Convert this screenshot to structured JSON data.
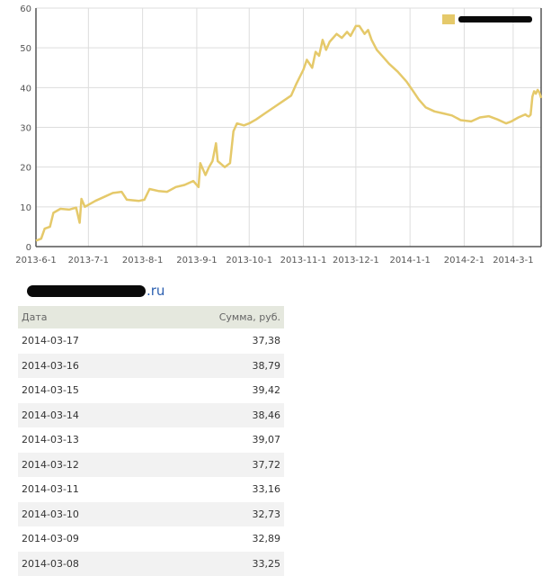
{
  "chart_data": {
    "type": "line",
    "legend": {
      "position": "top-right",
      "label_redacted": true
    },
    "series": [
      {
        "color": "#e5c96a",
        "points": [
          [
            "2013-06-01",
            1.5
          ],
          [
            "2013-06-04",
            2.0
          ],
          [
            "2013-06-06",
            4.5
          ],
          [
            "2013-06-09",
            5.0
          ],
          [
            "2013-06-11",
            8.5
          ],
          [
            "2013-06-15",
            9.5
          ],
          [
            "2013-06-20",
            9.3
          ],
          [
            "2013-06-24",
            9.8
          ],
          [
            "2013-06-26",
            6.0
          ],
          [
            "2013-06-27",
            12.0
          ],
          [
            "2013-06-29",
            10.0
          ],
          [
            "2013-07-05",
            11.5
          ],
          [
            "2013-07-10",
            12.5
          ],
          [
            "2013-07-15",
            13.5
          ],
          [
            "2013-07-20",
            13.8
          ],
          [
            "2013-07-23",
            11.8
          ],
          [
            "2013-07-30",
            11.5
          ],
          [
            "2013-08-02",
            11.8
          ],
          [
            "2013-08-05",
            14.5
          ],
          [
            "2013-08-10",
            14.0
          ],
          [
            "2013-08-15",
            13.8
          ],
          [
            "2013-08-20",
            15.0
          ],
          [
            "2013-08-25",
            15.5
          ],
          [
            "2013-08-30",
            16.5
          ],
          [
            "2013-09-02",
            15.0
          ],
          [
            "2013-09-03",
            21.0
          ],
          [
            "2013-09-06",
            18.0
          ],
          [
            "2013-09-08",
            20.0
          ],
          [
            "2013-09-10",
            21.5
          ],
          [
            "2013-09-12",
            26.0
          ],
          [
            "2013-09-13",
            21.5
          ],
          [
            "2013-09-17",
            20.0
          ],
          [
            "2013-09-20",
            21.0
          ],
          [
            "2013-09-22",
            29.0
          ],
          [
            "2013-09-24",
            31.0
          ],
          [
            "2013-09-28",
            30.5
          ],
          [
            "2013-10-01",
            31.0
          ],
          [
            "2013-10-05",
            32.0
          ],
          [
            "2013-10-10",
            33.5
          ],
          [
            "2013-10-15",
            35.0
          ],
          [
            "2013-10-20",
            36.5
          ],
          [
            "2013-10-25",
            38.0
          ],
          [
            "2013-10-28",
            41.0
          ],
          [
            "2013-11-01",
            44.5
          ],
          [
            "2013-11-03",
            47.0
          ],
          [
            "2013-11-06",
            45.0
          ],
          [
            "2013-11-08",
            49.0
          ],
          [
            "2013-11-10",
            48.0
          ],
          [
            "2013-11-12",
            52.0
          ],
          [
            "2013-11-14",
            49.5
          ],
          [
            "2013-11-16",
            51.5
          ],
          [
            "2013-11-20",
            53.5
          ],
          [
            "2013-11-23",
            52.5
          ],
          [
            "2013-11-26",
            54.0
          ],
          [
            "2013-11-28",
            53.0
          ],
          [
            "2013-12-01",
            55.5
          ],
          [
            "2013-12-03",
            55.5
          ],
          [
            "2013-12-06",
            53.5
          ],
          [
            "2013-12-08",
            54.5
          ],
          [
            "2013-12-10",
            52.0
          ],
          [
            "2013-12-13",
            49.5
          ],
          [
            "2013-12-17",
            47.5
          ],
          [
            "2013-12-20",
            46.0
          ],
          [
            "2013-12-25",
            44.0
          ],
          [
            "2013-12-30",
            41.5
          ],
          [
            "2014-01-03",
            39.0
          ],
          [
            "2014-01-06",
            37.0
          ],
          [
            "2014-01-10",
            35.0
          ],
          [
            "2014-01-15",
            34.0
          ],
          [
            "2014-01-20",
            33.5
          ],
          [
            "2014-01-25",
            33.0
          ],
          [
            "2014-01-30",
            31.8
          ],
          [
            "2014-02-05",
            31.5
          ],
          [
            "2014-02-10",
            32.5
          ],
          [
            "2014-02-15",
            32.8
          ],
          [
            "2014-02-20",
            32.0
          ],
          [
            "2014-02-25",
            31.0
          ],
          [
            "2014-02-28",
            31.5
          ],
          [
            "2014-03-04",
            32.5
          ],
          [
            "2014-03-08",
            33.25
          ],
          [
            "2014-03-09",
            32.89
          ],
          [
            "2014-03-10",
            32.73
          ],
          [
            "2014-03-11",
            33.16
          ],
          [
            "2014-03-12",
            37.72
          ],
          [
            "2014-03-13",
            39.07
          ],
          [
            "2014-03-14",
            38.46
          ],
          [
            "2014-03-15",
            39.42
          ],
          [
            "2014-03-16",
            38.79
          ],
          [
            "2014-03-17",
            37.38
          ]
        ]
      }
    ],
    "x_ticks": [
      "2013-6-1",
      "2013-7-1",
      "2013-8-1",
      "2013-9-1",
      "2013-10-1",
      "2013-11-1",
      "2013-12-1",
      "2014-1-1",
      "2014-2-1",
      "2014-3-1"
    ],
    "xlim": [
      "2013-06-01",
      "2014-03-17"
    ],
    "y_ticks": [
      0,
      10,
      20,
      30,
      40,
      50,
      60
    ],
    "ylim": [
      0,
      60
    ],
    "grid": true,
    "colors": {
      "grid": "#dddddd",
      "axis": "#555555",
      "tick_text": "#555555",
      "legend_swatch": "#e5c96a"
    }
  },
  "site": {
    "suffix": ".ru",
    "name_redacted": true
  },
  "table": {
    "headers": {
      "date": "Дата",
      "sum": "Сумма, руб."
    },
    "rows": [
      {
        "date": "2014-03-17",
        "sum": "37,38"
      },
      {
        "date": "2014-03-16",
        "sum": "38,79"
      },
      {
        "date": "2014-03-15",
        "sum": "39,42"
      },
      {
        "date": "2014-03-14",
        "sum": "38,46"
      },
      {
        "date": "2014-03-13",
        "sum": "39,07"
      },
      {
        "date": "2014-03-12",
        "sum": "37,72"
      },
      {
        "date": "2014-03-11",
        "sum": "33,16"
      },
      {
        "date": "2014-03-10",
        "sum": "32,73"
      },
      {
        "date": "2014-03-09",
        "sum": "32,89"
      },
      {
        "date": "2014-03-08",
        "sum": "33,25"
      }
    ]
  }
}
